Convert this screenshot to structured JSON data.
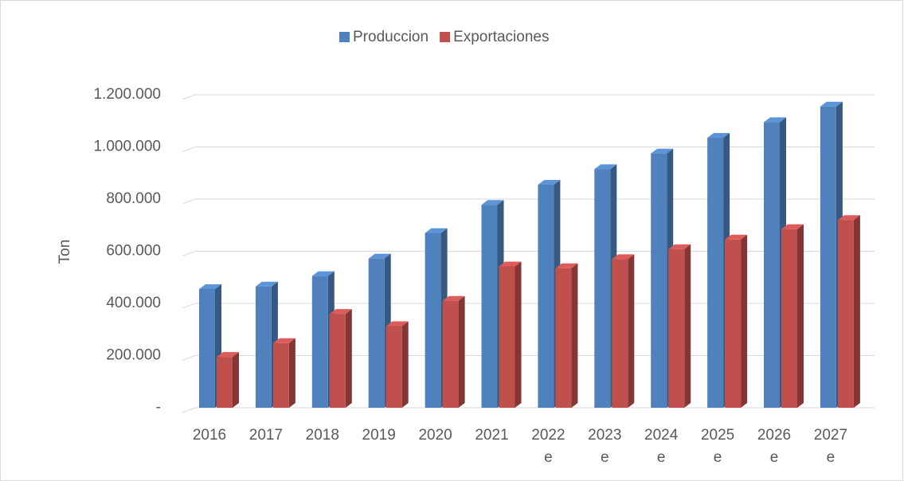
{
  "chart_data": {
    "type": "bar3d",
    "y_label": "Ton",
    "categories": [
      "2016",
      "2017",
      "2018",
      "2019",
      "2020",
      "2021",
      "2022 e",
      "2023 e",
      "2024 e",
      "2025 e",
      "2026 e",
      "2027 e"
    ],
    "series": [
      {
        "name": "Produccion",
        "color": "#4f81bd",
        "values": [
          455000,
          465000,
          505000,
          572000,
          670000,
          778000,
          855000,
          915000,
          975000,
          1035000,
          1095000,
          1155000
        ]
      },
      {
        "name": "Exportaciones",
        "color": "#c0504d",
        "values": [
          195000,
          248000,
          360000,
          313000,
          410000,
          542000,
          535000,
          570000,
          608000,
          645000,
          685000,
          720000
        ]
      }
    ],
    "ylim": [
      0,
      1200000
    ],
    "yticks": [
      {
        "value": 0,
        "label": "-"
      },
      {
        "value": 200000,
        "label": "200.000"
      },
      {
        "value": 400000,
        "label": "400.000"
      },
      {
        "value": 600000,
        "label": "600.000"
      },
      {
        "value": 800000,
        "label": "800.000"
      },
      {
        "value": 1000000,
        "label": "1.000.000"
      },
      {
        "value": 1200000,
        "label": "1.200.000"
      }
    ],
    "grid": true,
    "legend": "top"
  }
}
